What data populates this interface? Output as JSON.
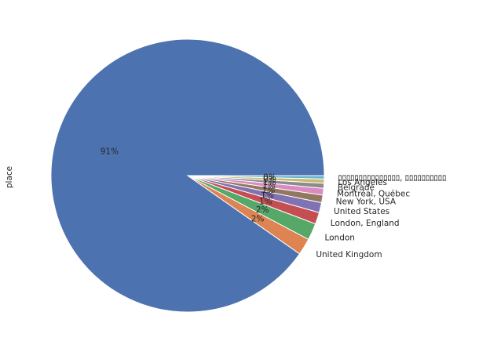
{
  "chart_data": {
    "type": "pie",
    "title": "",
    "ylabel": "place",
    "start_angle_deg": 0,
    "direction": "counterclockwise",
    "slices": [
      {
        "label": "",
        "value": 91.0,
        "pct_text": "91%",
        "color": "#4c72b0"
      },
      {
        "label": "United Kingdom",
        "value": 2.0,
        "pct_text": "2%",
        "color": "#dd8452"
      },
      {
        "label": "London",
        "value": 2.0,
        "pct_text": "2%",
        "color": "#55a868"
      },
      {
        "label": "London, England",
        "value": 1.4,
        "pct_text": "1%",
        "color": "#c44e52"
      },
      {
        "label": "United States",
        "value": 1.2,
        "pct_text": "1%",
        "color": "#8172b3"
      },
      {
        "label": "New York, USA",
        "value": 0.9,
        "pct_text": "1%",
        "color": "#937860"
      },
      {
        "label": "Montréal, Québec",
        "value": 0.8,
        "pct_text": "1%",
        "color": "#da8bc3"
      },
      {
        "label": "Belgrade",
        "value": 0.6,
        "pct_text": "1%",
        "color": "#8c8c8c"
      },
      {
        "label": "Los Angeles",
        "value": 0.5,
        "pct_text": "0%",
        "color": "#ccb974"
      },
      {
        "label": "ﾛﾛﾛﾛﾛﾛﾛﾛﾛﾛﾛﾛﾛﾛﾛ, ﾛﾛﾛﾛﾛﾛﾛﾛﾛﾛ",
        "value": 0.4,
        "pct_text": "0%",
        "color": "#64b5cd"
      }
    ]
  }
}
